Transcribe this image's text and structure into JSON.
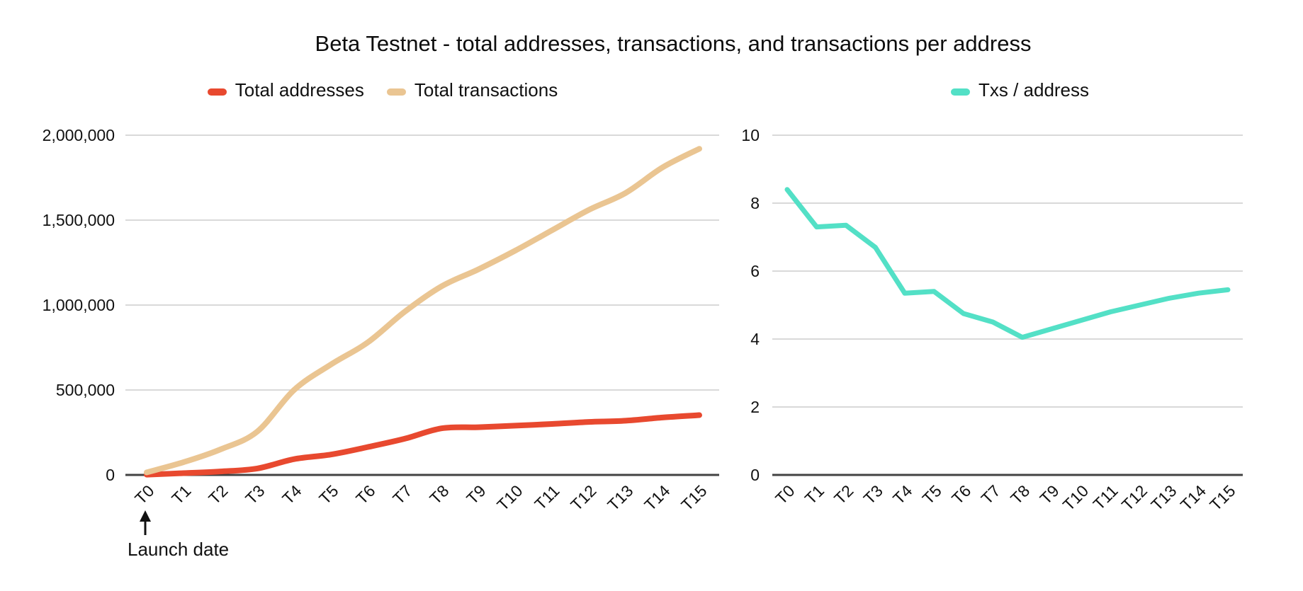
{
  "title": "Beta Testnet - total addresses, transactions, and transactions per address",
  "annotation": {
    "text": "Launch date",
    "target_category": "T0"
  },
  "colors": {
    "background": "#FFFFFF",
    "grid": "#D9D9D9",
    "axis": "#424242",
    "text": "#111111",
    "total_addresses": "#E8492F",
    "total_transactions": "#EAC592",
    "txs_per_address": "#53E0C6"
  },
  "chart_data": [
    {
      "type": "line",
      "smooth": true,
      "legend_position": "top",
      "grid": true,
      "categories": [
        "T0",
        "T1",
        "T2",
        "T3",
        "T4",
        "T5",
        "T6",
        "T7",
        "T8",
        "T9",
        "T10",
        "T11",
        "T12",
        "T13",
        "T14",
        "T15"
      ],
      "series": [
        {
          "name": "Total addresses",
          "color": "#E8492F",
          "values": [
            1800,
            10300,
            20400,
            38000,
            93000,
            120000,
            164000,
            213000,
            274000,
            281000,
            290000,
            300000,
            312000,
            319000,
            338000,
            352000
          ]
        },
        {
          "name": "Total transactions",
          "color": "#EAC592",
          "values": [
            15000,
            75000,
            150000,
            255000,
            500000,
            650000,
            780000,
            960000,
            1110000,
            1210000,
            1320000,
            1440000,
            1560000,
            1660000,
            1810000,
            1920000
          ]
        }
      ],
      "ylim": [
        0,
        2000000
      ],
      "y_tick_labels": [
        "0",
        "500,000",
        "1,000,000",
        "1,500,000",
        "2,000,000"
      ],
      "xlabel": "",
      "ylabel": ""
    },
    {
      "type": "line",
      "smooth": false,
      "legend_position": "top",
      "grid": true,
      "categories": [
        "T0",
        "T1",
        "T2",
        "T3",
        "T4",
        "T5",
        "T6",
        "T7",
        "T8",
        "T9",
        "T10",
        "T11",
        "T12",
        "T13",
        "T14",
        "T15"
      ],
      "series": [
        {
          "name": "Txs / address",
          "color": "#53E0C6",
          "values": [
            8.4,
            7.3,
            7.35,
            6.7,
            5.35,
            5.4,
            4.75,
            4.5,
            4.05,
            4.3,
            4.55,
            4.8,
            5.0,
            5.2,
            5.35,
            5.45
          ]
        }
      ],
      "ylim": [
        0,
        10
      ],
      "y_tick_labels": [
        "0",
        "2",
        "4",
        "6",
        "8",
        "10"
      ],
      "xlabel": "",
      "ylabel": ""
    }
  ]
}
